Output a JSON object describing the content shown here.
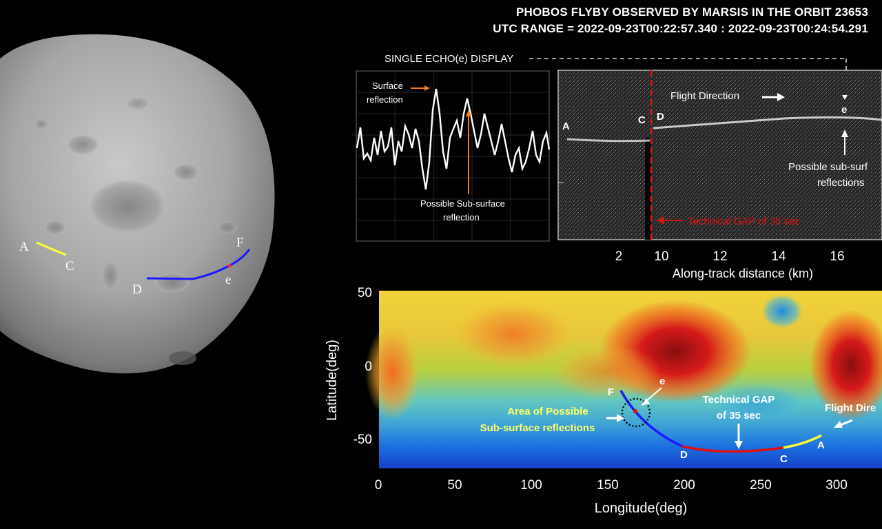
{
  "header": {
    "title_line1": "PHOBOS FLYBY OBSERVED BY MARSIS IN THE ORBIT 23653",
    "title_line2": "UTC RANGE = 2022-09-23T00:22:57.340 : 2022-09-23T00:24:54.291"
  },
  "phobos_image": {
    "labels": {
      "A": "A",
      "C": "C",
      "D": "D",
      "e": "e",
      "F": "F"
    },
    "colors": {
      "segment_AC": "#ffff33",
      "segment_DF": "#1a1aff",
      "marker_e": "#ff2020"
    }
  },
  "echo_panel": {
    "label": "SINGLE ECHO(e) DISPLAY",
    "surface_label_line1": "Surface",
    "surface_label_line2": "reflection",
    "subsurface_label_line1": "Possible Sub-surface",
    "subsurface_label_line2": "reflection",
    "arrow_color": "#f07a1e"
  },
  "radargram": {
    "point_labels": {
      "A": "A",
      "C": "C",
      "D": "D",
      "e": "e"
    },
    "flight_direction": "Flight Direction",
    "subsurface_line1": "Possible sub-surf",
    "subsurface_line2": "reflections",
    "gap_label": "Technical GAP of 35 sec",
    "gap_color": "#e01010",
    "x_ticks": [
      "2",
      "10",
      "12",
      "14",
      "16"
    ],
    "x_label": "Along-track distance (km)"
  },
  "map_panel": {
    "y_label": "Latitude(deg)",
    "x_label": "Longitude(deg)",
    "y_ticks": [
      "50",
      "0",
      "-50"
    ],
    "x_ticks": [
      "0",
      "50",
      "100",
      "150",
      "200",
      "250",
      "300"
    ],
    "track_labels": {
      "F": "F",
      "e": "e",
      "D": "D",
      "C": "C",
      "A": "A"
    },
    "area_label_line1": "Area of Possible",
    "area_label_line2": "Sub-surface reflections",
    "gap_label_line1": "Technical GAP",
    "gap_label_line2": "of 35 sec",
    "flight_direction": "Flight Dire",
    "colors": {
      "track_blue": "#1a1aff",
      "track_red": "#e01010",
      "track_yellow": "#ffff33",
      "area_label": "#ffff66"
    }
  }
}
